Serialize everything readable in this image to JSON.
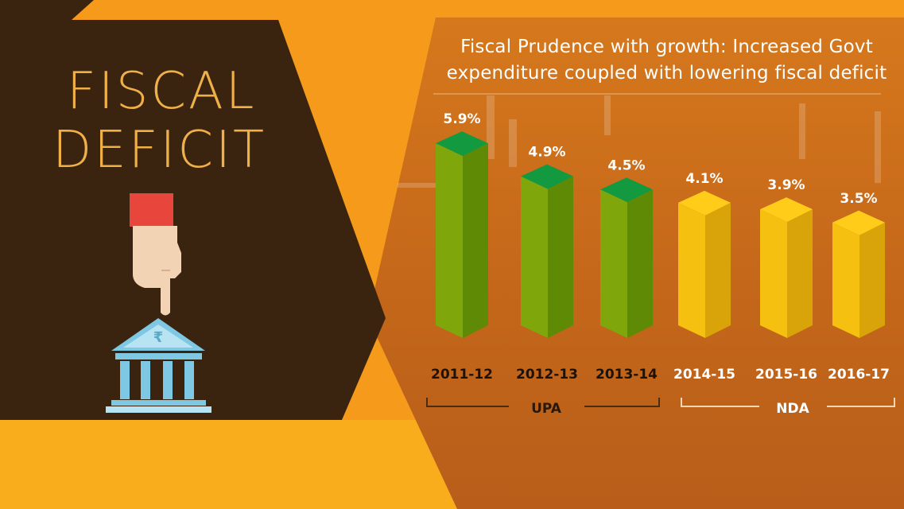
{
  "heading": {
    "line1": "FISCAL",
    "line2": "DEFICIT"
  },
  "colors": {
    "orange_bg": "#f59a1b",
    "panel_dark": "#3a2410",
    "upa_bar": "#7fa70c",
    "upa_top": "#139a40",
    "nda_bar": "#f5c010",
    "nda_top": "#ffcc1a",
    "bank_icon": "#7ec8e3",
    "sleeve": "#e8453c",
    "hand": "#f2d3b3"
  },
  "icons": [
    "pointing-hand-icon",
    "bank-rupee-icon"
  ],
  "chart_data": {
    "type": "bar",
    "title": "Fiscal Prudence with growth: Increased Govt expenditure coupled with lowering fiscal deficit",
    "title_lines": [
      "Fiscal Prudence with growth: Increased Govt",
      "expenditure coupled with lowering fiscal deficit"
    ],
    "categories": [
      "2011-12",
      "2012-13",
      "2013-14",
      "2014-15",
      "2015-16",
      "2016-17"
    ],
    "values": [
      5.9,
      4.9,
      4.5,
      4.1,
      3.9,
      3.5
    ],
    "value_labels": [
      "5.9%",
      "4.9%",
      "4.5%",
      "4.1%",
      "3.9%",
      "3.5%"
    ],
    "groups": [
      {
        "name": "UPA",
        "categories": [
          "2011-12",
          "2012-13",
          "2013-14"
        ]
      },
      {
        "name": "NDA",
        "categories": [
          "2014-15",
          "2015-16",
          "2016-17"
        ]
      }
    ],
    "grid": false,
    "legend": "none"
  }
}
